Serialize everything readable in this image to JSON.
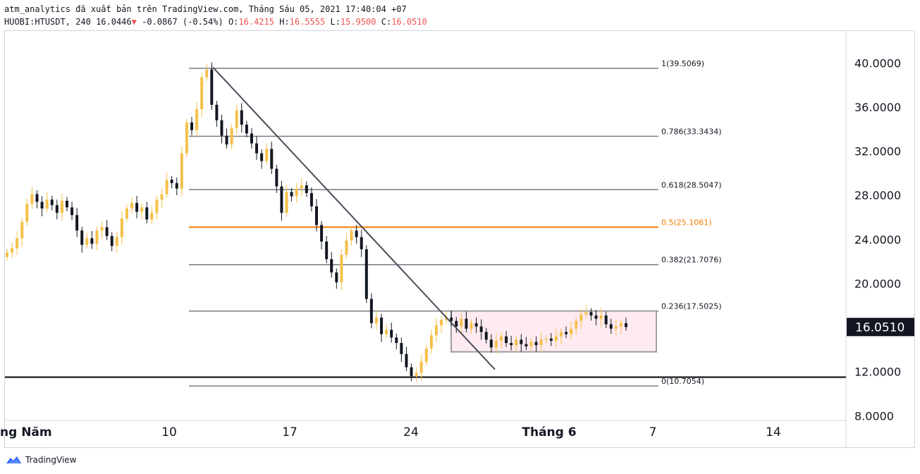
{
  "header": {
    "line1": "atm_analytics đã xuất bản trên TradingView.com, Tháng Sáu 05, 2021 17:40:04 +07",
    "symbol": "HUOBI:HTUSDT, 240",
    "last": "16.0446",
    "change": "-0.0867 (-0.54%)",
    "o_label": "O:",
    "o_value": "16.4215",
    "h_label": "H:",
    "h_value": "16.5555",
    "l_label": "L:",
    "l_value": "15.9500",
    "c_label": "C:",
    "c_value": "16.0510",
    "down_color": "#ef5350"
  },
  "footer": {
    "brand": "TradingView",
    "logo_icon": "tradingview-logo-icon"
  },
  "chart_data": {
    "type": "candlestick",
    "symbol": "HUOBI:HTUSDT",
    "interval": "240",
    "current_price": "16.0510",
    "y_axis": {
      "ticks": [
        "40.0000",
        "36.0000",
        "32.0000",
        "28.0000",
        "24.0000",
        "20.0000",
        "12.0000",
        "8.0000"
      ],
      "tick_values": [
        40,
        36,
        32,
        28,
        24,
        20,
        12,
        8
      ],
      "range": [
        7.5,
        42
      ]
    },
    "x_axis": {
      "ticks": [
        "ng Năm",
        "10",
        "17",
        "24",
        "Tháng 6",
        "7",
        "14"
      ],
      "bold_ticks": [
        "ng Năm",
        "Tháng 6"
      ]
    },
    "fibonacci": [
      {
        "label": "1(39.5069)",
        "value": 39.5069
      },
      {
        "label": "0.786(33.3434)",
        "value": 33.3434
      },
      {
        "label": "0.618(28.5047)",
        "value": 28.5047
      },
      {
        "label": "0.5(25.1061)",
        "value": 25.1061,
        "highlight": true
      },
      {
        "label": "0.382(21.7076)",
        "value": 21.7076
      },
      {
        "label": "0.236(17.5025)",
        "value": 17.5025
      },
      {
        "label": "0(10.7054)",
        "value": 10.7054
      }
    ],
    "support_line": 11.5,
    "trendline": {
      "from": 39.6,
      "to": 12.2
    },
    "range_box": {
      "top": 17.5,
      "bottom": 13.8
    },
    "price_path": [
      22.8,
      23.2,
      24.1,
      25.6,
      27.2,
      28.1,
      27.4,
      26.8,
      27.6,
      27.1,
      26.4,
      27.5,
      26.9,
      26.2,
      24.8,
      23.5,
      24.1,
      23.6,
      24.8,
      25.1,
      24.3,
      23.4,
      24.2,
      25.9,
      26.8,
      27.3,
      26.5,
      26.9,
      25.8,
      26.4,
      27.6,
      28.1,
      29.4,
      29.1,
      28.6,
      31.8,
      34.6,
      33.9,
      35.8,
      38.7,
      39.4,
      36.2,
      34.8,
      33.4,
      32.6,
      34.1,
      35.7,
      34.4,
      33.6,
      32.7,
      31.8,
      31.1,
      32.2,
      30.4,
      28.8,
      26.4,
      28.3,
      27.9,
      28.6,
      28.9,
      28.2,
      27.0,
      25.3,
      23.8,
      22.2,
      21.0,
      20.1,
      22.6,
      23.9,
      24.8,
      24.2,
      23.1,
      18.6,
      16.4,
      16.9,
      15.4,
      15.8,
      15.1,
      14.6,
      13.6,
      12.4,
      11.6,
      11.9,
      12.9,
      14.1,
      15.3,
      16.2,
      16.7,
      16.9,
      16.6,
      16.1,
      16.8,
      15.9,
      16.4,
      16.1,
      15.6,
      14.9,
      14.2,
      14.8,
      15.2,
      14.6,
      14.4,
      14.9,
      14.5,
      14.3,
      14.7,
      14.4,
      14.9,
      15.0,
      14.8,
      15.2,
      15.6,
      15.4,
      15.9,
      16.6,
      17.2,
      17.4,
      17.1,
      16.8,
      17.1,
      16.3,
      15.9,
      16.1,
      16.4,
      16.05
    ]
  }
}
